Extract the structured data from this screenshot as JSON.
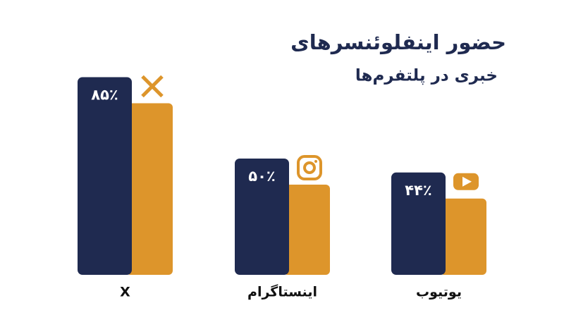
{
  "chart_data": {
    "type": "bar",
    "title": "حضور اینفلوئنسرهای",
    "subtitle": "خبری در پلتفرم‌ها",
    "categories": [
      "X",
      "اینستاگرام",
      "یوتیوب"
    ],
    "values": [
      85,
      50,
      44
    ],
    "value_labels": [
      "۸۵٪",
      "۵۰٪",
      "۴۴٪"
    ],
    "color": "#1f2a50",
    "shadow_color": "#dd952b"
  }
}
